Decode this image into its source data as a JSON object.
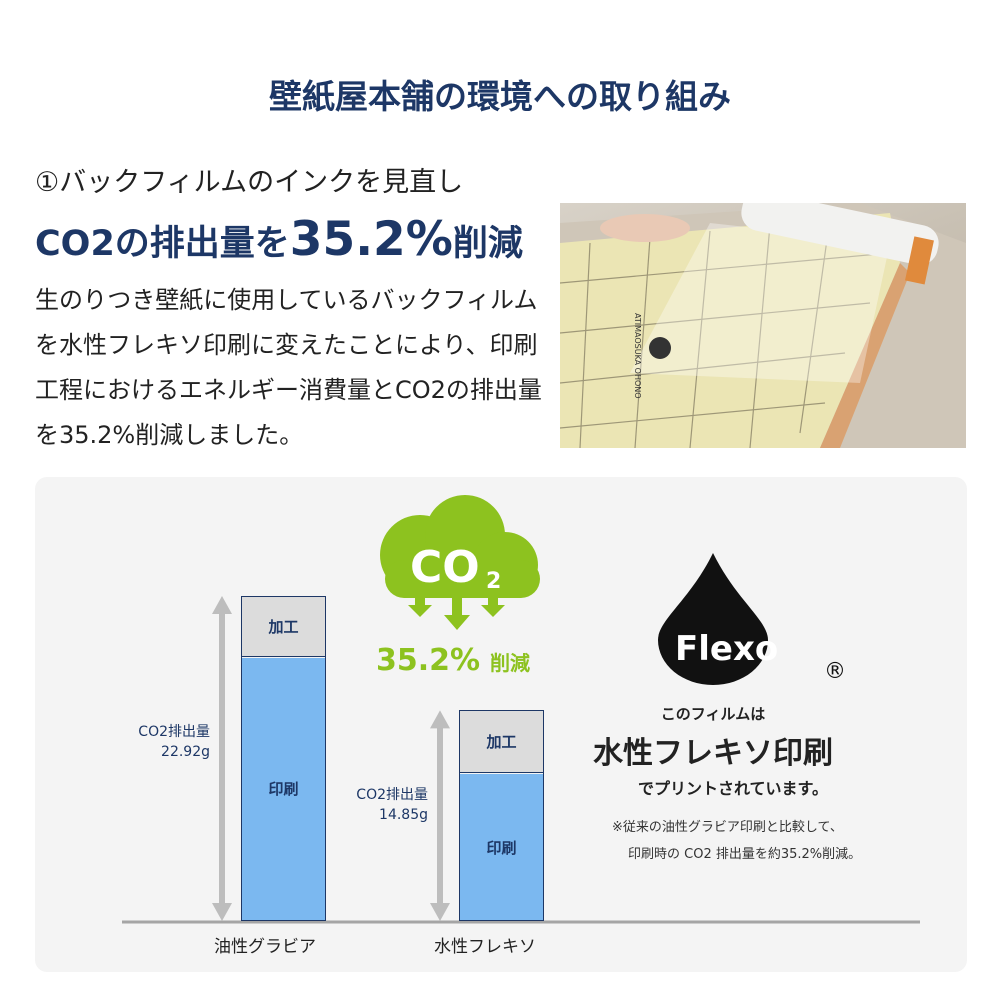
{
  "title": "壁紙屋本舗の環境への取り組み",
  "subheading": "①バックフィルムのインクを見直し",
  "headline": {
    "pre": "CO2の排出量を",
    "big": "35.2%",
    "post": "削減"
  },
  "body": "生のりつき壁紙に使用しているバックフィルムを水性フレキソ印刷に変えたことにより、印刷工程におけるエネルギー消費量とCO2の排出量を35.2%削減しました。",
  "photo": {
    "roll_text": "ATIMAOSUKA OHONO"
  },
  "cloud": {
    "label": "CO",
    "sub": "2",
    "reduction": "35.2%",
    "reduction_suffix": "削減",
    "color": "#8dc21f"
  },
  "flexo": {
    "logo": "Flexo",
    "registered": "®",
    "line1": "このフィルムは",
    "line2": "水性フレキソ印刷",
    "line3": "でプリントされています。",
    "note1": "※従来の油性グラビア印刷と比較して、",
    "note2": "印刷時の CO2 排出量を約35.2%削減。"
  },
  "chart_data": {
    "type": "bar",
    "categories": [
      "油性グラビア",
      "水性フレキソ"
    ],
    "values": [
      22.92,
      14.85
    ],
    "unit": "g",
    "segment_labels": [
      "加工",
      "印刷"
    ],
    "value_labels": [
      {
        "line1": "CO2排出量",
        "line2": "22.92g"
      },
      {
        "line1": "CO2排出量",
        "line2": "14.85g"
      }
    ],
    "colors": {
      "加工": "#dcdcdc",
      "印刷": "#7bb8f0",
      "outline": "#1d3766",
      "arrow": "#bdbdbd"
    }
  }
}
